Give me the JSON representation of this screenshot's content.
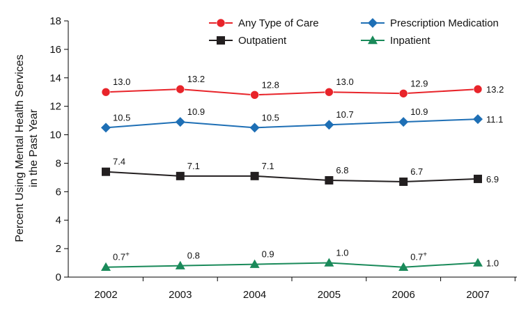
{
  "chart_data": {
    "type": "line",
    "title": "",
    "xlabel": "",
    "ylabel_lines": [
      "Percent Using Mental Health Services",
      "in the Past Year"
    ],
    "categories": [
      "2002",
      "2003",
      "2004",
      "2005",
      "2006",
      "2007"
    ],
    "ylim": [
      0,
      18
    ],
    "yticks": [
      0,
      2,
      4,
      6,
      8,
      10,
      12,
      14,
      16,
      18
    ],
    "ytick_labels": [
      "0",
      "2",
      "4",
      "6",
      "8",
      "10",
      "12",
      "14",
      "16",
      "18"
    ],
    "grid": false,
    "legend_position": "top-right",
    "series": [
      {
        "name": "Any Type of Care",
        "color": "#e8242a",
        "marker": "circle",
        "values": [
          13.0,
          13.2,
          12.8,
          13.0,
          12.9,
          13.2
        ],
        "labels": [
          "13.0",
          "13.2",
          "12.8",
          "13.0",
          "12.9",
          "13.2"
        ],
        "label_sup": [
          "",
          "",
          "",
          "",
          "",
          ""
        ]
      },
      {
        "name": "Prescription Medication",
        "color": "#1e6fb5",
        "marker": "diamond",
        "values": [
          10.5,
          10.9,
          10.5,
          10.7,
          10.9,
          11.1
        ],
        "labels": [
          "10.5",
          "10.9",
          "10.5",
          "10.7",
          "10.9",
          "11.1"
        ],
        "label_sup": [
          "",
          "",
          "",
          "",
          "",
          ""
        ]
      },
      {
        "name": "Outpatient",
        "color": "#231f20",
        "marker": "square",
        "values": [
          7.4,
          7.1,
          7.1,
          6.8,
          6.7,
          6.9
        ],
        "labels": [
          "7.4",
          "7.1",
          "7.1",
          "6.8",
          "6.7",
          "6.9"
        ],
        "label_sup": [
          "",
          "",
          "",
          "",
          "",
          ""
        ]
      },
      {
        "name": "Inpatient",
        "color": "#1a8a5a",
        "marker": "triangle",
        "values": [
          0.7,
          0.8,
          0.9,
          1.0,
          0.7,
          1.0
        ],
        "labels": [
          "0.7",
          "0.8",
          "0.9",
          "1.0",
          "0.7",
          "1.0"
        ],
        "label_sup": [
          "+",
          "",
          "",
          "",
          "+",
          ""
        ]
      }
    ]
  }
}
